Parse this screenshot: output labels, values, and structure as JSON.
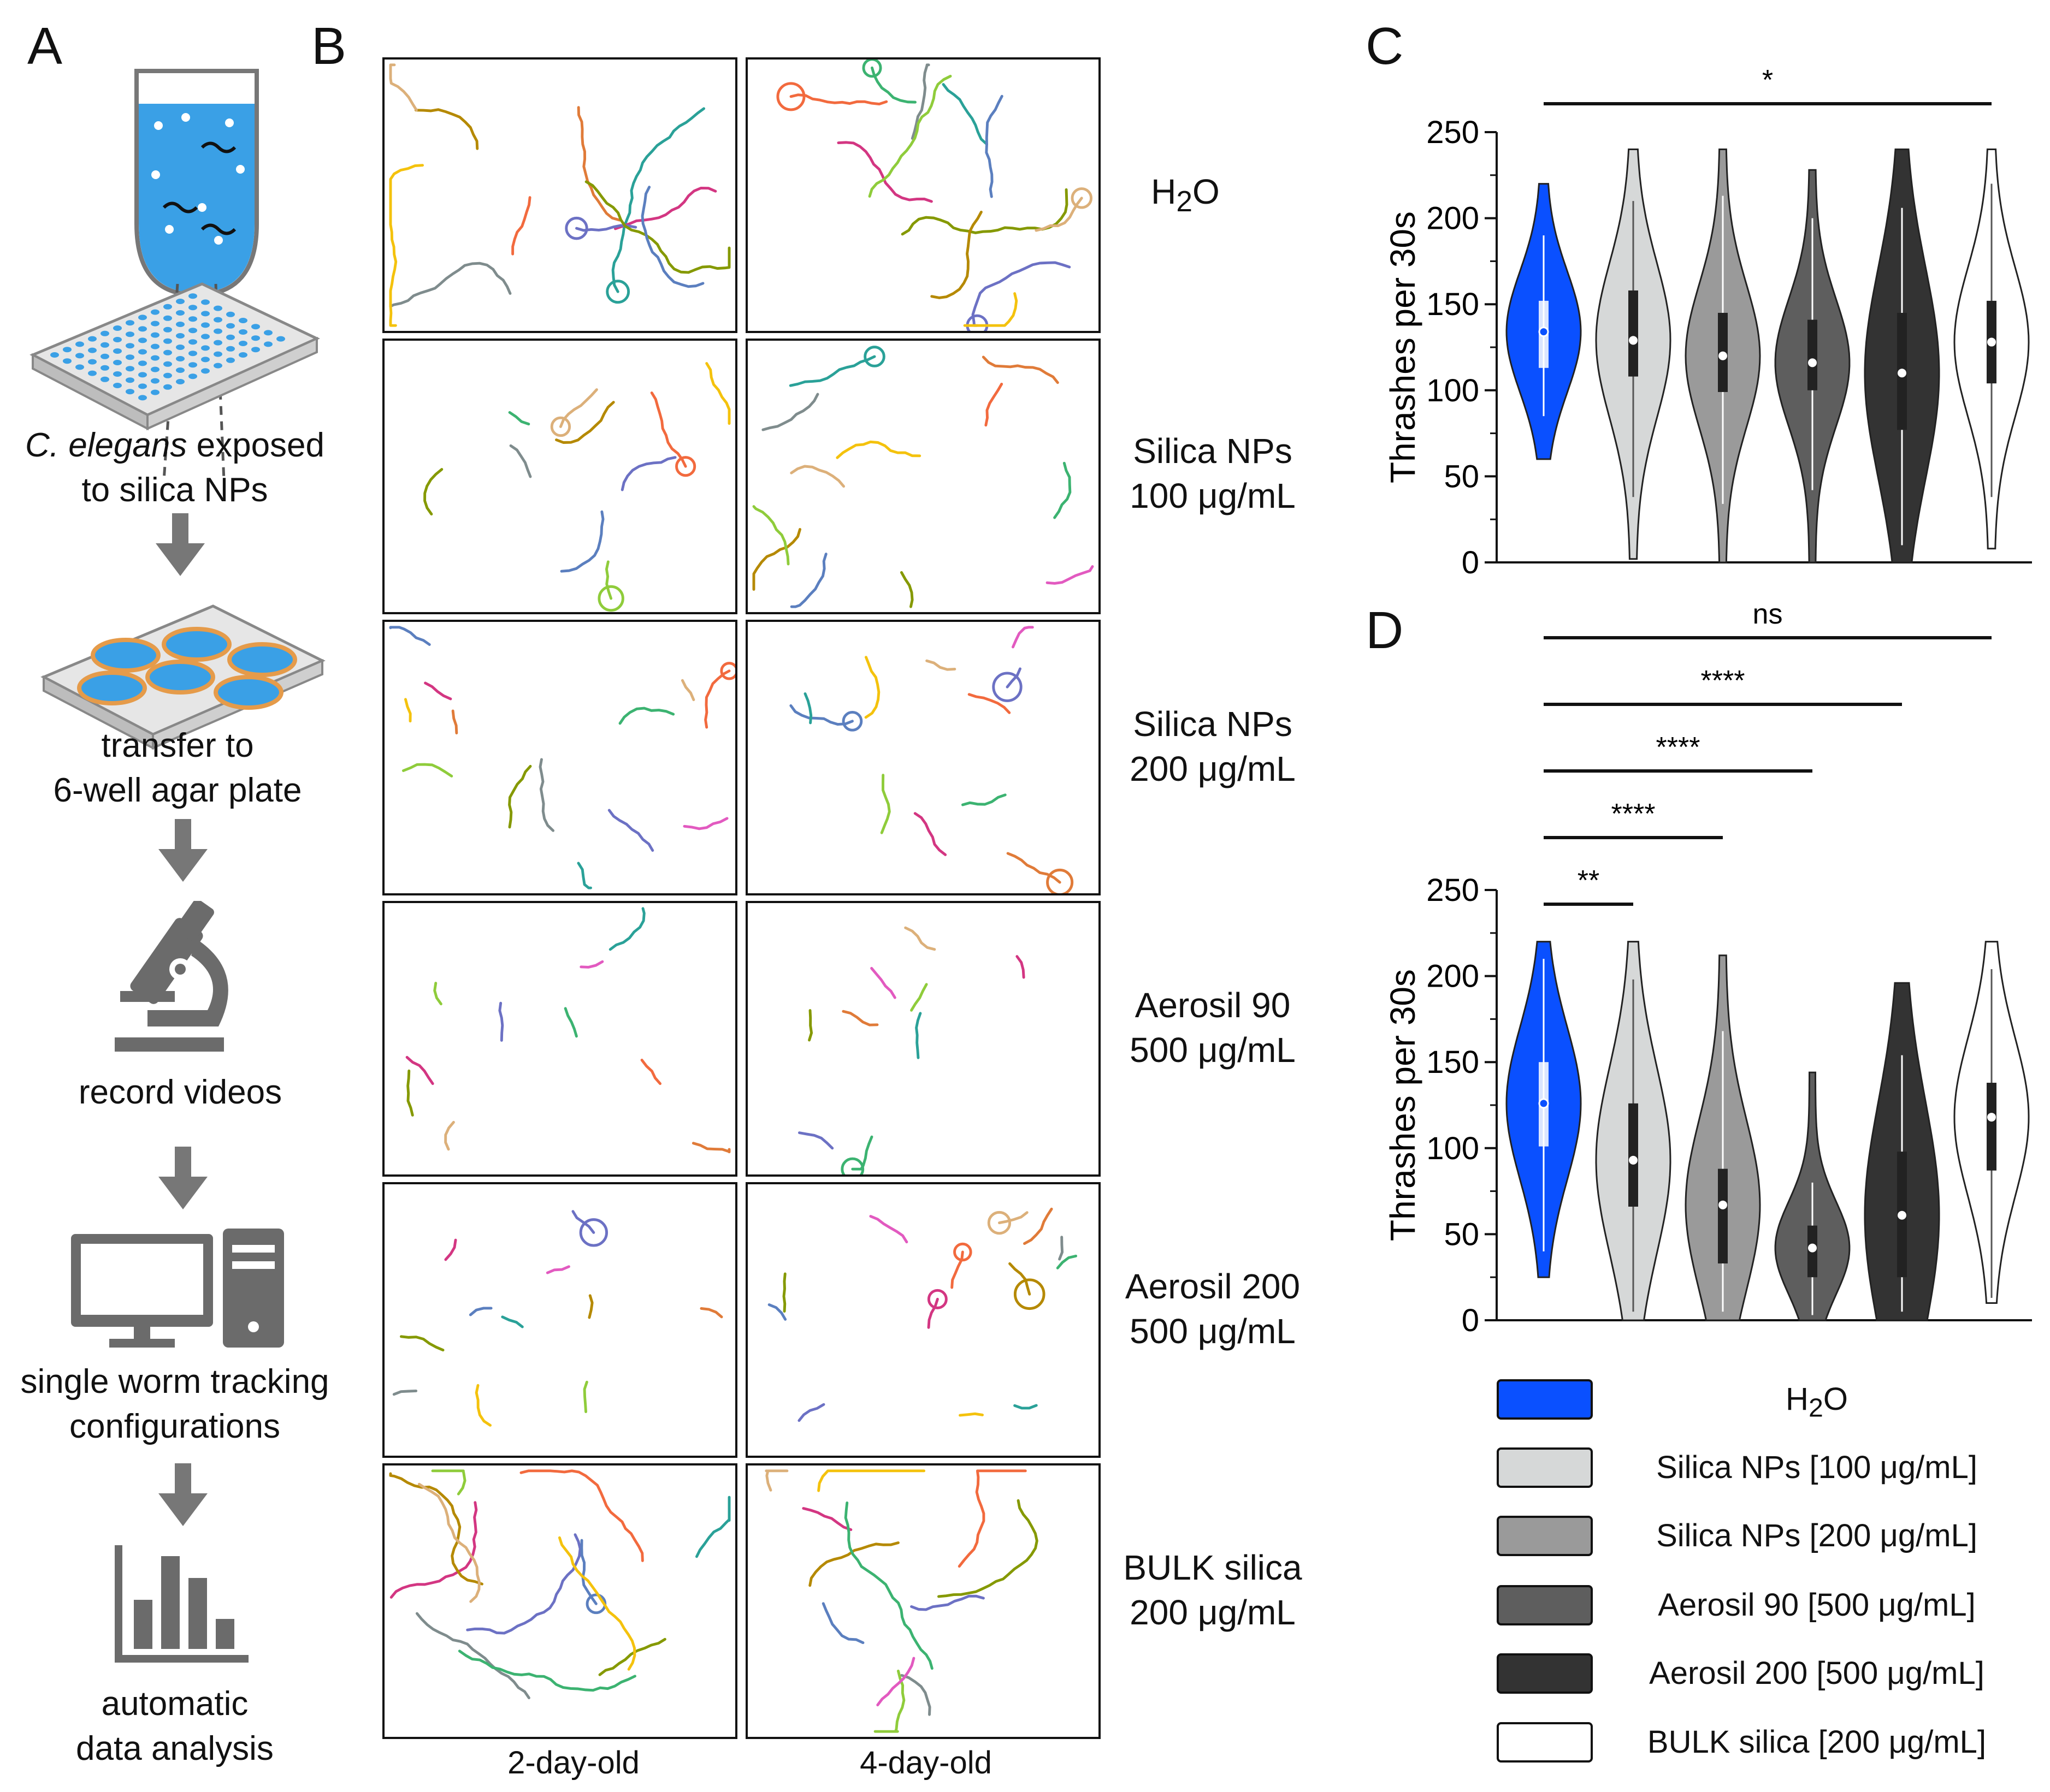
{
  "panels": {
    "a": "A",
    "b": "B",
    "c": "C",
    "d": "D"
  },
  "panel_a": {
    "steps": [
      {
        "line1_italic": "C. elegans",
        "line1_rest": " exposed",
        "line2": "to silica NPs"
      },
      {
        "line1": "transfer to",
        "line2": "6-well agar plate"
      },
      {
        "line1": "record videos"
      },
      {
        "line1": "single worm tracking",
        "line2": "configurations"
      },
      {
        "line1": "automatic",
        "line2": "data analysis"
      }
    ],
    "icons": [
      "test-tube-icon",
      "96-well-plate-icon",
      "6-well-plate-icon",
      "microscope-icon",
      "computer-icon",
      "bar-chart-icon"
    ]
  },
  "panel_b": {
    "columns": [
      "2-day-old",
      "4-day-old"
    ],
    "rows": [
      {
        "line1": "H",
        "sub": "2",
        "line1_end": "O",
        "line2": ""
      },
      {
        "line1": "Silica NPs",
        "line2": "100 μg/mL"
      },
      {
        "line1": "Silica NPs",
        "line2": "200 μg/mL"
      },
      {
        "line1": "Aerosil 90",
        "line2": "500 μg/mL"
      },
      {
        "line1": "Aerosil 200",
        "line2": "500 μg/mL"
      },
      {
        "line1": "BULK silica",
        "line2": "200 μg/mL"
      }
    ],
    "track_colors": [
      "#e07b39",
      "#2aa198",
      "#d33682",
      "#6c71c4",
      "#859900",
      "#b58900",
      "#7f8c8d",
      "#5b7fbf",
      "#f4c20d",
      "#f26a3e",
      "#dcb07a",
      "#3cb371",
      "#8fcc3b",
      "#e25ac0"
    ]
  },
  "chart_data": [
    {
      "type": "violin",
      "panel": "C",
      "ylabel": "Thrashes per 30s",
      "ylim": [
        0,
        250
      ],
      "yticks": [
        0,
        50,
        100,
        150,
        200,
        250
      ],
      "groups": [
        {
          "name": "H2O",
          "min": 60,
          "max": 220,
          "q1": 113,
          "median": 134,
          "q3": 152,
          "whisker_low": 85,
          "whisker_high": 190,
          "fill": "#0a50ff"
        },
        {
          "name": "Silica NPs [100 μg/mL]",
          "min": 2,
          "max": 240,
          "q1": 108,
          "median": 129,
          "q3": 158,
          "whisker_low": 38,
          "whisker_high": 210,
          "fill": "#d6d8d8"
        },
        {
          "name": "Silica NPs [200 μg/mL]",
          "min": 0,
          "max": 240,
          "q1": 99,
          "median": 120,
          "q3": 145,
          "whisker_low": 34,
          "whisker_high": 213,
          "fill": "#9a9a9a"
        },
        {
          "name": "Aerosil 90 [500 μg/mL]",
          "min": 0,
          "max": 228,
          "q1": 100,
          "median": 116,
          "q3": 141,
          "whisker_low": 42,
          "whisker_high": 200,
          "fill": "#5e5e5e"
        },
        {
          "name": "Aerosil 200 [500 μg/mL]",
          "min": 0,
          "max": 240,
          "q1": 77,
          "median": 110,
          "q3": 145,
          "whisker_low": 10,
          "whisker_high": 206,
          "fill": "#333333"
        },
        {
          "name": "BULK silica [200 μg/mL]",
          "min": 8,
          "max": 240,
          "q1": 104,
          "median": 128,
          "q3": 152,
          "whisker_low": 38,
          "whisker_high": 220,
          "fill": "#ffffff"
        }
      ],
      "comparisons": [
        {
          "from": 0,
          "to": 5,
          "label": "*"
        }
      ]
    },
    {
      "type": "violin",
      "panel": "D",
      "ylabel": "Thrashes per 30s",
      "ylim": [
        0,
        250
      ],
      "yticks": [
        0,
        50,
        100,
        150,
        200,
        250
      ],
      "groups": [
        {
          "name": "H2O",
          "min": 25,
          "max": 220,
          "q1": 101,
          "median": 126,
          "q3": 150,
          "whisker_low": 40,
          "whisker_high": 210,
          "fill": "#0a50ff"
        },
        {
          "name": "Silica NPs [100 μg/mL]",
          "min": 0,
          "max": 220,
          "q1": 66,
          "median": 93,
          "q3": 126,
          "whisker_low": 5,
          "whisker_high": 198,
          "fill": "#d6d8d8"
        },
        {
          "name": "Silica NPs [200 μg/mL]",
          "min": 0,
          "max": 212,
          "q1": 33,
          "median": 67,
          "q3": 88,
          "whisker_low": 5,
          "whisker_high": 168,
          "fill": "#9a9a9a"
        },
        {
          "name": "Aerosil 90 [500 μg/mL]",
          "min": 0,
          "max": 144,
          "q1": 25,
          "median": 42,
          "q3": 55,
          "whisker_low": 3,
          "whisker_high": 80,
          "fill": "#5e5e5e"
        },
        {
          "name": "Aerosil 200 [500 μg/mL]",
          "min": 0,
          "max": 196,
          "q1": 25,
          "median": 61,
          "q3": 98,
          "whisker_low": 5,
          "whisker_high": 154,
          "fill": "#333333"
        },
        {
          "name": "BULK silica [200 μg/mL]",
          "min": 10,
          "max": 220,
          "q1": 87,
          "median": 118,
          "q3": 138,
          "whisker_low": 13,
          "whisker_high": 204,
          "fill": "#ffffff"
        }
      ],
      "comparisons": [
        {
          "from": 0,
          "to": 5,
          "label": "ns"
        },
        {
          "from": 0,
          "to": 4,
          "label": "****"
        },
        {
          "from": 0,
          "to": 3,
          "label": "****"
        },
        {
          "from": 0,
          "to": 2,
          "label": "****"
        },
        {
          "from": 0,
          "to": 1,
          "label": "**"
        }
      ]
    }
  ],
  "legend": [
    {
      "label_pre": "H",
      "label_sub": "2",
      "label_post": "O",
      "fill": "#0a50ff"
    },
    {
      "label": "Silica NPs [100 μg/mL]",
      "fill": "#d6d8d8"
    },
    {
      "label": "Silica NPs [200 μg/mL]",
      "fill": "#9a9a9a"
    },
    {
      "label": "Aerosil 90 [500 μg/mL]",
      "fill": "#5e5e5e"
    },
    {
      "label": "Aerosil 200 [500 μg/mL]",
      "fill": "#333333"
    },
    {
      "label": "BULK silica [200 μg/mL]",
      "fill": "#ffffff"
    }
  ]
}
